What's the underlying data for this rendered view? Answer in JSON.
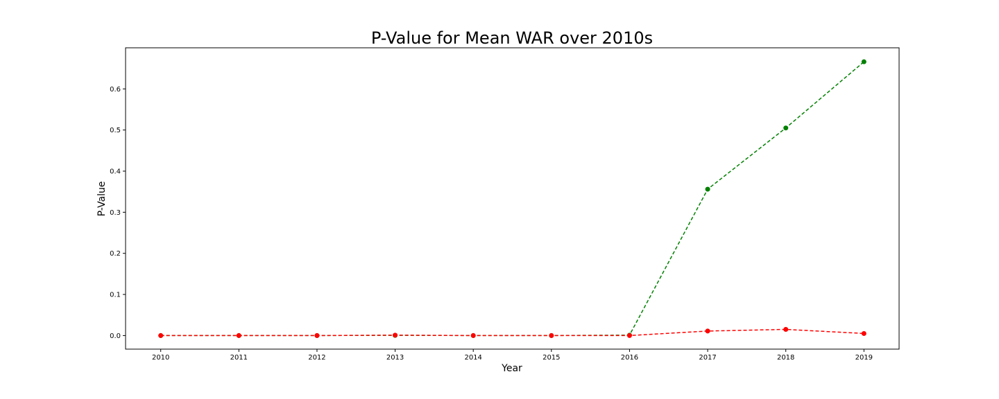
{
  "chart_data": {
    "type": "line",
    "title": "P-Value for Mean WAR over 2010s",
    "xlabel": "Year",
    "ylabel": "P-Value",
    "x": [
      2010,
      2011,
      2012,
      2013,
      2014,
      2015,
      2016,
      2017,
      2018,
      2019
    ],
    "x_tick_labels": [
      "2010",
      "2011",
      "2012",
      "2013",
      "2014",
      "2015",
      "2016",
      "2017",
      "2018",
      "2019"
    ],
    "y_ticks": [
      0.0,
      0.1,
      0.2,
      0.3,
      0.4,
      0.5,
      0.6
    ],
    "y_tick_labels": [
      "0.0",
      "0.1",
      "0.2",
      "0.3",
      "0.4",
      "0.5",
      "0.6"
    ],
    "xlim": [
      2009.55,
      2019.45
    ],
    "ylim": [
      -0.033,
      0.7
    ],
    "grid": false,
    "series": [
      {
        "color": "#008000",
        "line_style": "dashed",
        "marker": "circle",
        "values": [
          0.0,
          0.0,
          0.0,
          0.0005,
          0.0,
          0.0,
          0.001,
          0.356,
          0.505,
          0.666
        ]
      },
      {
        "color": "#ff0000",
        "line_style": "dashed",
        "marker": "circle",
        "values": [
          0.0,
          0.0,
          0.0,
          0.001,
          0.0,
          0.0,
          0.0,
          0.011,
          0.015,
          0.005
        ]
      }
    ]
  }
}
